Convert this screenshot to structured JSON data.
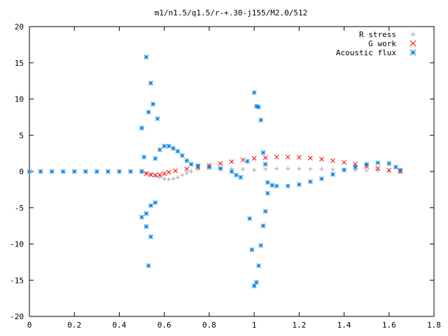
{
  "chart_data": {
    "type": "scatter",
    "title": "m1/n1.5/q1.5/r-+.30-j155/M2.0/512",
    "xlabel": "",
    "ylabel": "",
    "xlim": [
      0,
      1.8
    ],
    "ylim": [
      -20,
      20
    ],
    "x_ticks": [
      0,
      0.2,
      0.4,
      0.6,
      0.8,
      1,
      1.2,
      1.4,
      1.6,
      1.8
    ],
    "x_tick_labels": [
      "0",
      "0.2",
      "0.4",
      "0.6",
      "0.8",
      "1",
      "1.2",
      "1.4",
      "1.6",
      "1.8"
    ],
    "y_ticks": [
      -20,
      -15,
      -10,
      -5,
      0,
      5,
      10,
      15,
      20
    ],
    "y_tick_labels": [
      "-20",
      "-15",
      "-10",
      "-5",
      "0",
      "5",
      "10",
      "15",
      "20"
    ],
    "grid": false,
    "legend_position": "top-right",
    "series": [
      {
        "name": "R stress",
        "marker": "plus",
        "color": "#a0a0a0",
        "points": [
          [
            0.5,
            0.0
          ],
          [
            0.52,
            -0.2
          ],
          [
            0.54,
            -0.4
          ],
          [
            0.56,
            -0.6
          ],
          [
            0.58,
            -0.8
          ],
          [
            0.6,
            -1.0
          ],
          [
            0.62,
            -1.1
          ],
          [
            0.64,
            -1.0
          ],
          [
            0.66,
            -0.8
          ],
          [
            0.68,
            -0.5
          ],
          [
            0.7,
            -0.2
          ],
          [
            0.72,
            0.0
          ],
          [
            0.75,
            0.3
          ],
          [
            0.8,
            0.5
          ],
          [
            0.85,
            0.5
          ],
          [
            0.9,
            0.4
          ],
          [
            0.95,
            0.3
          ],
          [
            1.0,
            0.2
          ],
          [
            1.05,
            0.35
          ],
          [
            1.1,
            0.4
          ],
          [
            1.15,
            0.4
          ],
          [
            1.2,
            0.38
          ],
          [
            1.25,
            0.35
          ],
          [
            1.3,
            0.32
          ],
          [
            1.35,
            0.28
          ],
          [
            1.4,
            0.25
          ],
          [
            1.45,
            0.2
          ],
          [
            1.5,
            0.16
          ],
          [
            1.55,
            0.12
          ],
          [
            1.6,
            0.05
          ],
          [
            1.65,
            0.0
          ]
        ]
      },
      {
        "name": "G work",
        "marker": "cross",
        "color": "#ff0000",
        "points": [
          [
            0.5,
            0.0
          ],
          [
            0.52,
            -0.3
          ],
          [
            0.54,
            -0.45
          ],
          [
            0.56,
            -0.5
          ],
          [
            0.58,
            -0.45
          ],
          [
            0.6,
            -0.3
          ],
          [
            0.62,
            -0.1
          ],
          [
            0.65,
            0.1
          ],
          [
            0.7,
            0.35
          ],
          [
            0.75,
            0.6
          ],
          [
            0.8,
            0.85
          ],
          [
            0.85,
            1.1
          ],
          [
            0.9,
            1.35
          ],
          [
            0.95,
            1.6
          ],
          [
            1.0,
            1.8
          ],
          [
            1.05,
            1.9
          ],
          [
            1.1,
            2.0
          ],
          [
            1.15,
            2.0
          ],
          [
            1.2,
            1.95
          ],
          [
            1.25,
            1.85
          ],
          [
            1.3,
            1.7
          ],
          [
            1.35,
            1.5
          ],
          [
            1.4,
            1.25
          ],
          [
            1.45,
            1.0
          ],
          [
            1.5,
            0.7
          ],
          [
            1.55,
            0.45
          ],
          [
            1.6,
            0.2
          ],
          [
            1.65,
            0.0
          ]
        ]
      },
      {
        "name": "Acoustic flux",
        "marker": "star",
        "color": "#0080e0",
        "points": [
          [
            0.0,
            0.0
          ],
          [
            0.05,
            0.0
          ],
          [
            0.1,
            0.0
          ],
          [
            0.15,
            0.0
          ],
          [
            0.2,
            0.0
          ],
          [
            0.25,
            0.0
          ],
          [
            0.3,
            0.0
          ],
          [
            0.35,
            0.0
          ],
          [
            0.4,
            0.0
          ],
          [
            0.45,
            0.0
          ],
          [
            0.5,
            0.0
          ],
          [
            0.5,
            6.0
          ],
          [
            0.51,
            2.0
          ],
          [
            0.52,
            15.8
          ],
          [
            0.52,
            -7.6
          ],
          [
            0.53,
            -13.0
          ],
          [
            0.53,
            8.2
          ],
          [
            0.54,
            12.2
          ],
          [
            0.54,
            -4.7
          ],
          [
            0.55,
            9.3
          ],
          [
            0.56,
            1.8
          ],
          [
            0.57,
            7.3
          ],
          [
            0.5,
            -6.3
          ],
          [
            0.52,
            -5.8
          ],
          [
            0.54,
            -9.0
          ],
          [
            0.56,
            -4.3
          ],
          [
            0.58,
            3.0
          ],
          [
            0.6,
            3.5
          ],
          [
            0.62,
            3.5
          ],
          [
            0.64,
            3.2
          ],
          [
            0.66,
            2.8
          ],
          [
            0.68,
            2.2
          ],
          [
            0.7,
            1.5
          ],
          [
            0.72,
            1.0
          ],
          [
            0.75,
            0.8
          ],
          [
            0.8,
            0.6
          ],
          [
            0.85,
            0.4
          ],
          [
            0.9,
            0.0
          ],
          [
            0.92,
            -0.5
          ],
          [
            0.94,
            -0.8
          ],
          [
            0.97,
            1.4
          ],
          [
            0.98,
            -6.5
          ],
          [
            0.99,
            -10.8
          ],
          [
            1.0,
            -15.8
          ],
          [
            1.0,
            10.9
          ],
          [
            1.01,
            9.0
          ],
          [
            1.01,
            -15.3
          ],
          [
            1.02,
            -13.0
          ],
          [
            1.02,
            8.9
          ],
          [
            1.03,
            -10.2
          ],
          [
            1.03,
            7.1
          ],
          [
            1.04,
            -7.5
          ],
          [
            1.04,
            2.6
          ],
          [
            1.05,
            -5.5
          ],
          [
            1.05,
            1.0
          ],
          [
            1.06,
            -3.0
          ],
          [
            1.06,
            -1.5
          ],
          [
            1.08,
            -1.9
          ],
          [
            1.1,
            -2.0
          ],
          [
            1.15,
            -2.0
          ],
          [
            1.2,
            -1.8
          ],
          [
            1.25,
            -1.4
          ],
          [
            1.3,
            -1.0
          ],
          [
            1.35,
            -0.4
          ],
          [
            1.4,
            0.2
          ],
          [
            1.45,
            0.6
          ],
          [
            1.5,
            1.0
          ],
          [
            1.55,
            1.2
          ],
          [
            1.6,
            1.1
          ],
          [
            1.63,
            0.6
          ],
          [
            1.65,
            0.2
          ]
        ]
      }
    ]
  }
}
